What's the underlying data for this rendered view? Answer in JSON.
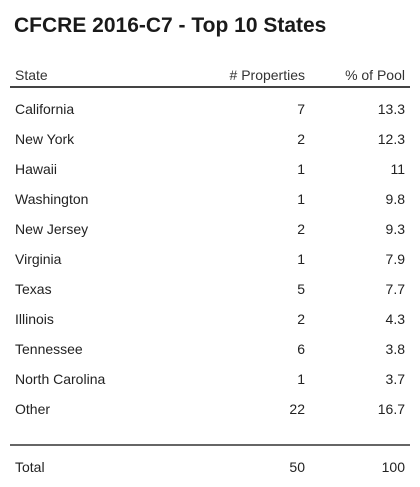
{
  "title": "CFCRE 2016-C7 - Top 10 States",
  "table": {
    "headers": {
      "state": "State",
      "properties": "# Properties",
      "pool": "% of Pool"
    },
    "rows": [
      {
        "state": "California",
        "properties": "7",
        "pool": "13.3"
      },
      {
        "state": "New York",
        "properties": "2",
        "pool": "12.3"
      },
      {
        "state": "Hawaii",
        "properties": "1",
        "pool": "11"
      },
      {
        "state": "Washington",
        "properties": "1",
        "pool": "9.8"
      },
      {
        "state": "New Jersey",
        "properties": "2",
        "pool": "9.3"
      },
      {
        "state": "Virginia",
        "properties": "1",
        "pool": "7.9"
      },
      {
        "state": "Texas",
        "properties": "5",
        "pool": "7.7"
      },
      {
        "state": "Illinois",
        "properties": "2",
        "pool": "4.3"
      },
      {
        "state": "Tennessee",
        "properties": "6",
        "pool": "3.8"
      },
      {
        "state": "North Carolina",
        "properties": "1",
        "pool": "3.7"
      },
      {
        "state": "Other",
        "properties": "22",
        "pool": "16.7"
      }
    ],
    "total": {
      "state": "Total",
      "properties": "50",
      "pool": "100"
    }
  }
}
